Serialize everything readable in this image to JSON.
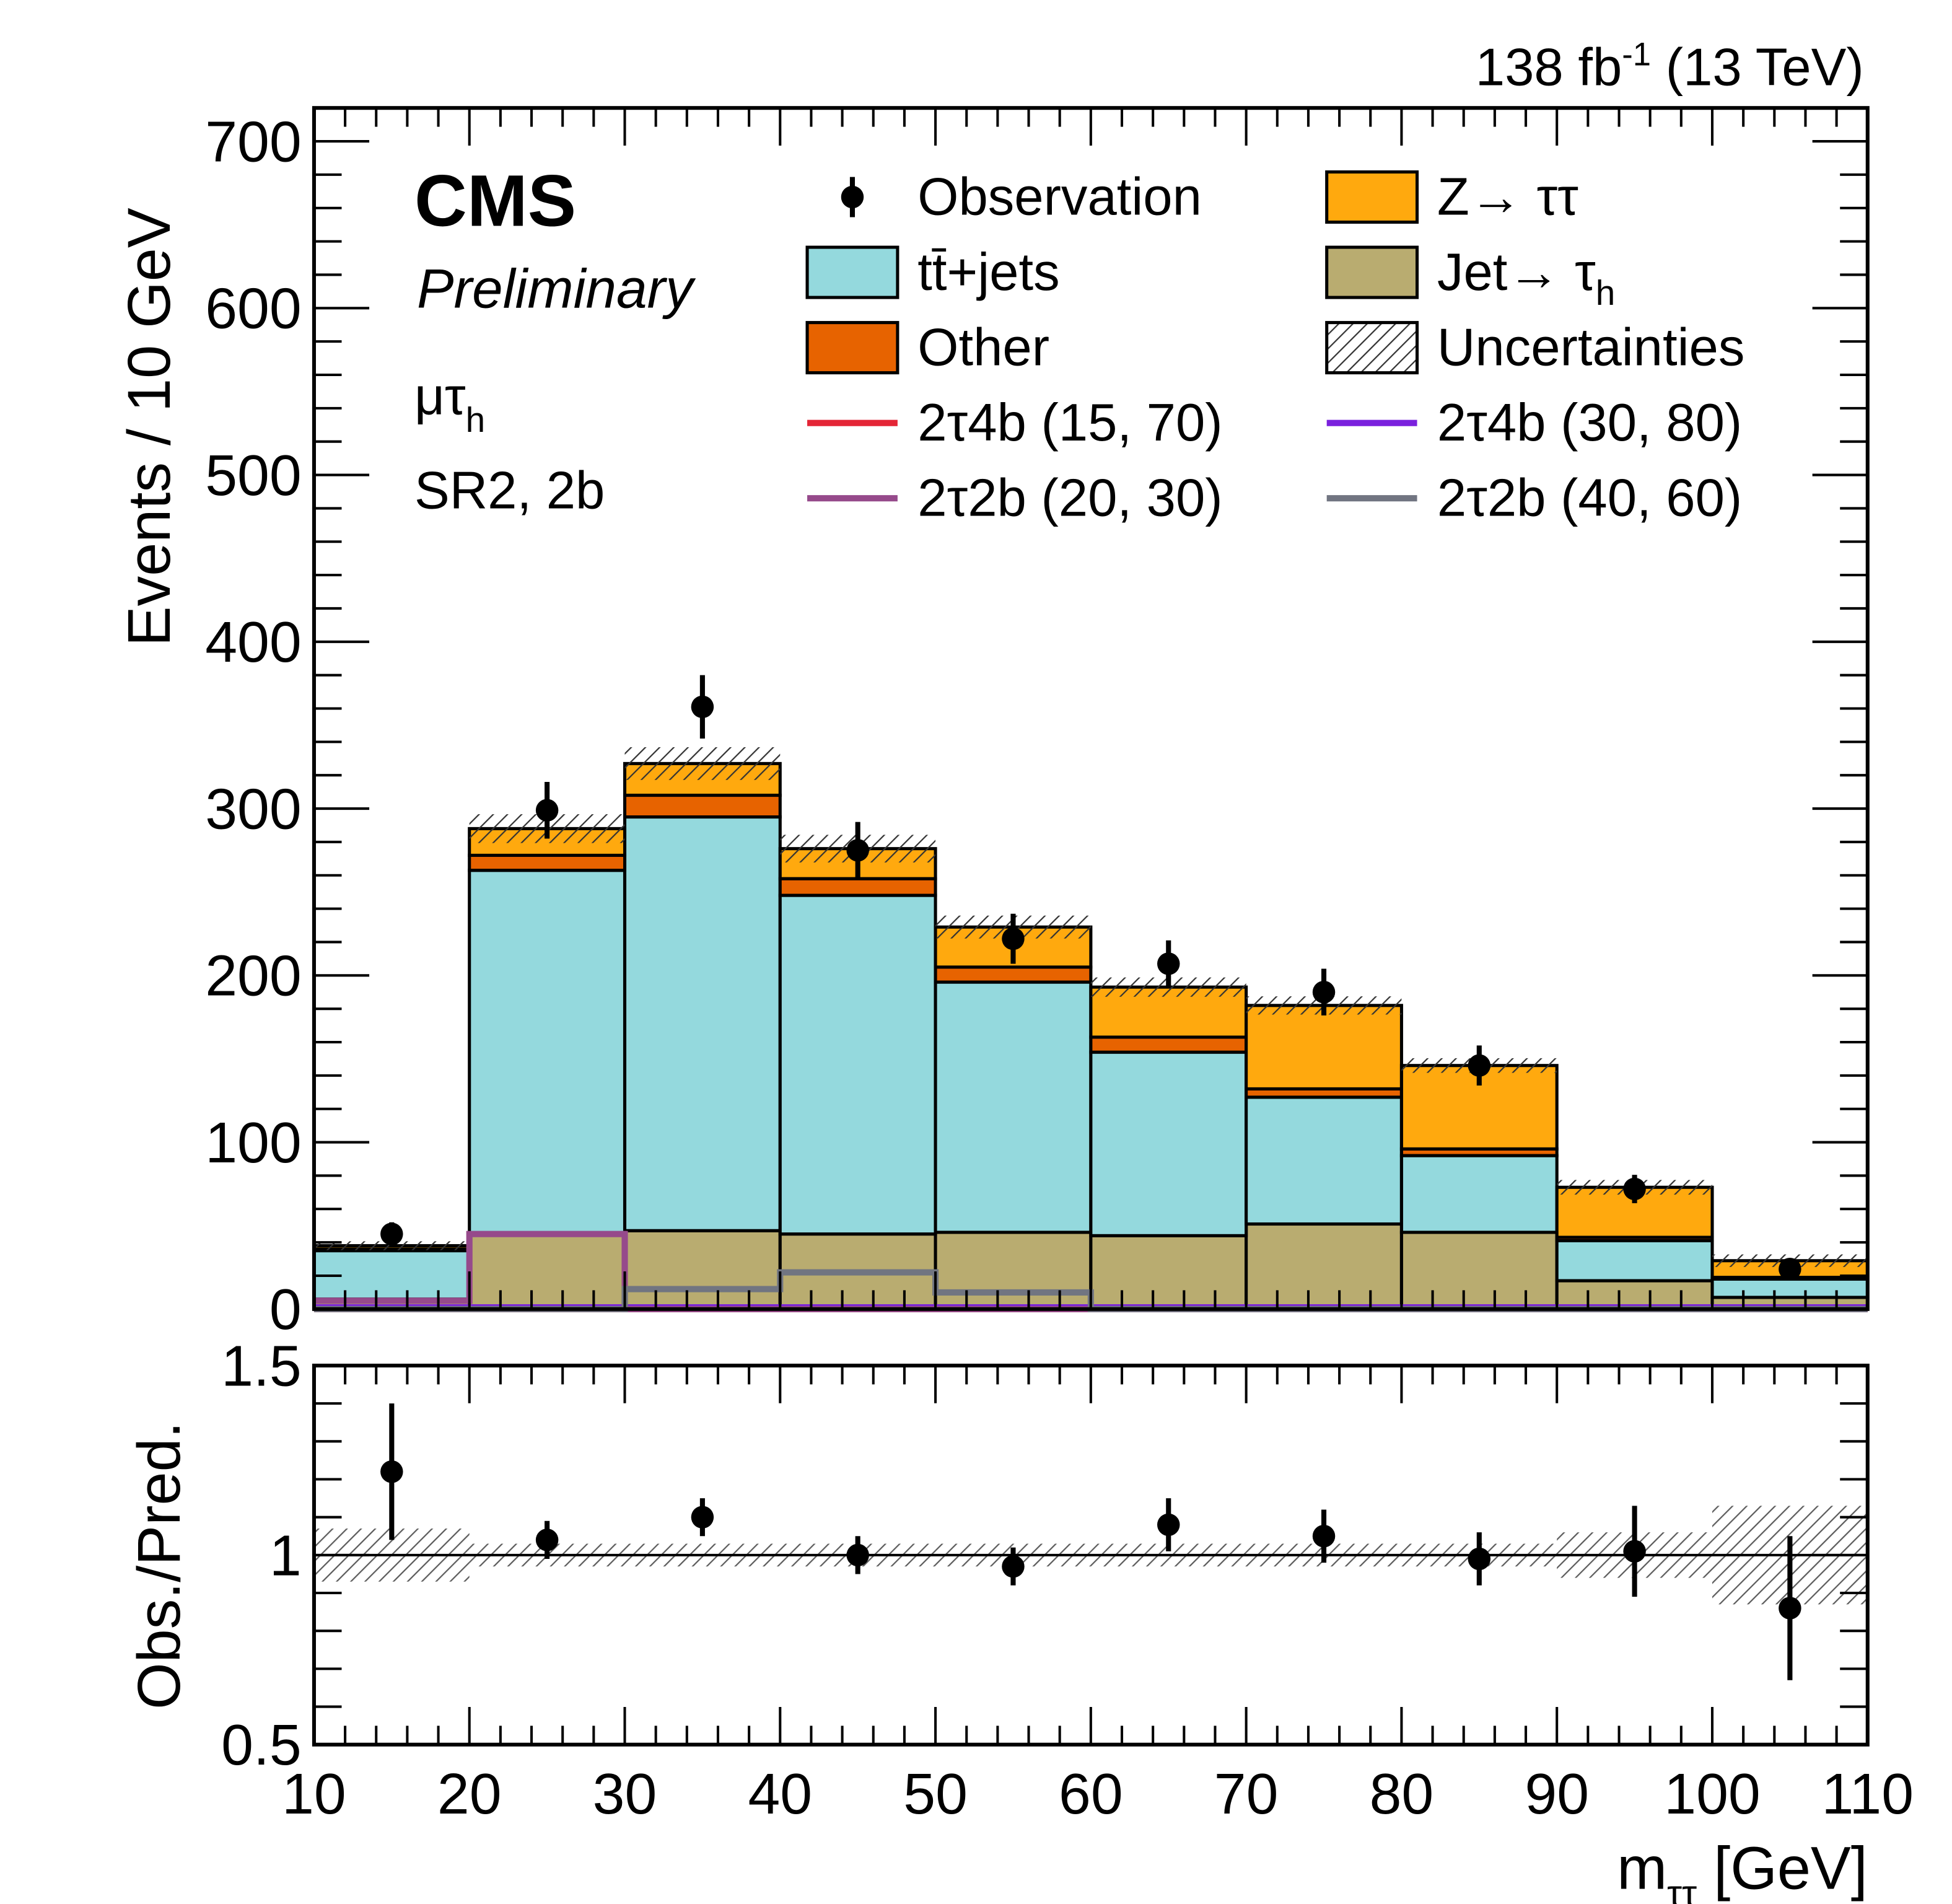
{
  "chart_data": {
    "type": "bar",
    "stacked": true,
    "lumi_label": "138 fb",
    "lumi_sup": "-1",
    "energy_label": " (13 TeV)",
    "experiment": "CMS",
    "status": "Preliminary",
    "channel": "μτ",
    "channel_sub": "h",
    "region": "SR2, 2b",
    "ylabel": "Events / 10 GeV",
    "ratio_ylabel": "Obs./Pred.",
    "xlabel": "m",
    "xlabel_sub": "ττ",
    "xlabel_unit": " [GeV]",
    "bin_edges": [
      10,
      20,
      30,
      40,
      50,
      60,
      70,
      80,
      90,
      100,
      110
    ],
    "xlim": [
      10,
      110
    ],
    "ylim": [
      0,
      720
    ],
    "ratio_ylim": [
      0.5,
      1.5
    ],
    "xticks": [
      "10",
      "20",
      "30",
      "40",
      "50",
      "60",
      "70",
      "80",
      "90",
      "100",
      "110"
    ],
    "yticks": [
      "0",
      "100",
      "200",
      "300",
      "400",
      "500",
      "600",
      "700"
    ],
    "ratio_yticks": [
      "0.5",
      "1",
      "1.5"
    ],
    "colors": {
      "ttbar": "#94d9dd",
      "other": "#e76300",
      "ztt": "#ffa90e",
      "jetfake": "#b9ac70"
    },
    "stack": [
      {
        "name": "Jet→ τ",
        "name_sub": "h",
        "key": "jetfake",
        "values": [
          6,
          45,
          47,
          45,
          46,
          44,
          51,
          46,
          17,
          7
        ]
      },
      {
        "name": "tt̄+jets",
        "key": "ttbar",
        "values": [
          29,
          218,
          248,
          203,
          150,
          110,
          76,
          46,
          24,
          11
        ]
      },
      {
        "name": "Other",
        "key": "other",
        "values": [
          1,
          9,
          13,
          10,
          9,
          9,
          5,
          4,
          2,
          1
        ]
      },
      {
        "name": "Z→ ττ",
        "key": "ztt",
        "values": [
          2,
          16,
          19,
          18,
          24,
          30,
          50,
          50,
          30,
          10
        ]
      }
    ],
    "uncertainty": {
      "name": "Uncertainties",
      "rel": [
        0.07,
        0.03,
        0.03,
        0.03,
        0.03,
        0.03,
        0.03,
        0.03,
        0.06,
        0.13
      ]
    },
    "observation": {
      "name": "Observation",
      "values": [
        45,
        299,
        361,
        275,
        222,
        207,
        190,
        146,
        72,
        24
      ],
      "errors": [
        7,
        17,
        19,
        17,
        15,
        14,
        14,
        12,
        8.5,
        5
      ]
    },
    "signals": [
      {
        "name": "2τ4b (15, 70)",
        "color": "#e42536",
        "values": [
          0,
          0,
          0,
          0,
          0,
          0,
          0,
          0,
          0,
          0
        ]
      },
      {
        "name": "2τ4b (30, 80)",
        "color": "#7a21dd",
        "values": [
          1,
          1,
          1,
          1,
          1,
          1,
          1,
          1,
          1,
          1
        ]
      },
      {
        "name": "2τ2b (20, 30)",
        "color": "#964a8b",
        "values": [
          5,
          45,
          0,
          0,
          0,
          0,
          0,
          0,
          0,
          0
        ]
      },
      {
        "name": "2τ2b (40, 60)",
        "color": "#717581",
        "values": [
          0,
          0,
          12,
          22,
          10,
          0,
          0,
          0,
          0,
          0
        ]
      }
    ],
    "ratio": {
      "values": [
        1.22,
        1.04,
        1.1,
        1.0,
        0.97,
        1.08,
        1.05,
        0.99,
        1.01,
        0.86
      ],
      "errors": [
        0.18,
        0.05,
        0.05,
        0.05,
        0.05,
        0.07,
        0.07,
        0.07,
        0.12,
        0.19
      ]
    }
  }
}
